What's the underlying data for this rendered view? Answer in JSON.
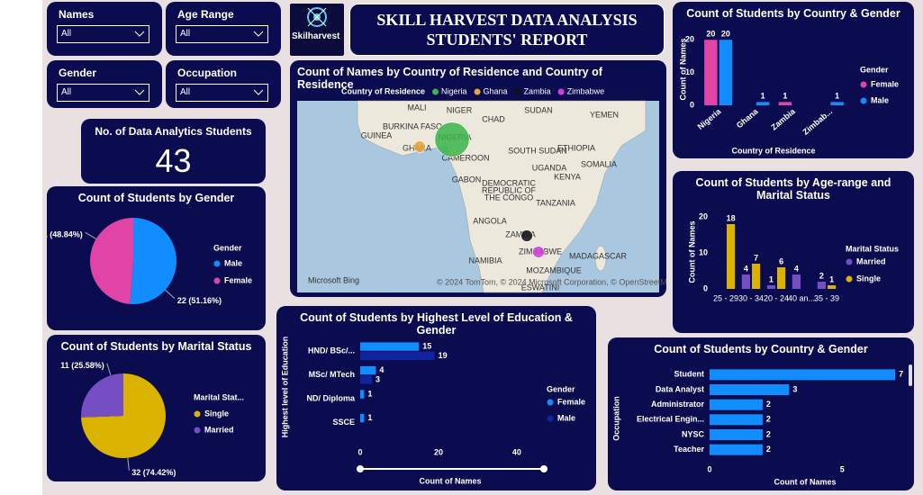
{
  "header": {
    "logo_text": "Skilharvest",
    "title_lines": [
      "SKILL HARVEST DATA ANALYSIS",
      "STUDENTS' REPORT"
    ]
  },
  "slicers": [
    {
      "label": "Names",
      "value": "All"
    },
    {
      "label": "Age Range",
      "value": "All"
    },
    {
      "label": "Gender",
      "value": "All"
    },
    {
      "label": "Occupation",
      "value": "All"
    }
  ],
  "kpi": {
    "label": "No. of Data Analytics Students",
    "value": 43
  },
  "chart_data": [
    {
      "type": "column",
      "title": "Count of Students by Country & Gender",
      "categories": [
        "Nigeria",
        "Ghana",
        "Zambia",
        "Zimbab..."
      ],
      "series": [
        {
          "name": "Female",
          "color": "#e044a7",
          "values": [
            20,
            null,
            1,
            null
          ]
        },
        {
          "name": "Male",
          "color": "#118dff",
          "values": [
            20,
            1,
            null,
            1
          ]
        }
      ],
      "ylim": [
        0,
        22
      ],
      "yticks": [
        0,
        10,
        20
      ],
      "y_label": "Count of Names",
      "x_label": "Country of Residence",
      "legend_title": "Gender",
      "legend": "right",
      "data_labels": true
    },
    {
      "type": "pie",
      "title": "Count of Students by Gender",
      "categories": [
        "Male",
        "Female"
      ],
      "values": [
        22,
        21
      ],
      "value_labels": [
        "22 (51.16%)",
        "21 (48.84%)"
      ],
      "colors": [
        "#118dff",
        "#e044a7"
      ],
      "legend_title": "Gender",
      "legend": "right"
    },
    {
      "type": "pie",
      "title": "Count of Students by Marital Status",
      "categories": [
        "Single",
        "Married"
      ],
      "values": [
        32,
        11
      ],
      "value_labels": [
        "32 (74.42%)",
        "11 (25.58%)"
      ],
      "colors": [
        "#d9b300",
        "#744ec2"
      ],
      "legend_title": "Marital Stat...",
      "legend": "right"
    },
    {
      "type": "map",
      "title": "Count of Names by Country of Residence and Country of Residence",
      "legend_title": "Country of Residence",
      "legend": "top",
      "categories": [
        "Nigeria",
        "Ghana",
        "Zambia",
        "Zimbabwe"
      ],
      "values": [
        40,
        1,
        1,
        1
      ],
      "colors": [
        "#3bb44a",
        "#e8a23a",
        "#111111",
        "#d43cd9"
      ],
      "map_labels": [
        "MALI",
        "NIGER",
        "CHAD",
        "SUDAN",
        "YEMEN",
        "BURKINA FASO",
        "GUINEA",
        "NIGERIA",
        "GHANA",
        "SOUTH SUDAN",
        "ETHIOPIA",
        "CAMEROON",
        "UGANDA",
        "SOMALIA",
        "GABON",
        "KENYA",
        "DEMOCRATIC",
        "REPUBLIC OF",
        "THE CONGO",
        "TANZANIA",
        "ANGOLA",
        "ZAMBIA",
        "ZIMBABWE",
        "NAMIBIA",
        "MADAGASCAR",
        "MOZAMBIQUE",
        "ESWATINI"
      ],
      "attribution": "© 2024 TomTom, © 2024 Microsoft Corporation, © OpenStreetMap  Terms",
      "provider": "Microsoft Bing"
    },
    {
      "type": "column",
      "title": "Count of Students by Age-range and Marital Status",
      "categories": [
        "25 - 29",
        "30 - 34",
        "20 - 24",
        "40 an...",
        "35 - 39"
      ],
      "series": [
        {
          "name": "Married",
          "color": "#744ec2",
          "values": [
            null,
            4,
            1,
            4,
            2
          ]
        },
        {
          "name": "Single",
          "color": "#d9b300",
          "values": [
            18,
            7,
            6,
            null,
            1
          ]
        }
      ],
      "ylim": [
        0,
        22
      ],
      "yticks": [
        0,
        10,
        20
      ],
      "y_label": "Count of Names",
      "legend_title": "Marital Status",
      "legend": "right",
      "data_labels": true
    },
    {
      "type": "hbar",
      "title": "Count of Students by Highest Level of Education & Gender",
      "categories": [
        "HND/ BSc/...",
        "MSc/ MTech",
        "ND/ Diploma",
        "SSCE"
      ],
      "series": [
        {
          "name": "Female",
          "color": "#118dff",
          "values": [
            15,
            4,
            1,
            1
          ]
        },
        {
          "name": "Male",
          "color": "#12239e",
          "values": [
            19,
            3,
            null,
            null
          ]
        }
      ],
      "xlim": [
        0,
        46
      ],
      "xticks": [
        0,
        20,
        40
      ],
      "y_label": "Highest level of Education",
      "x_label": "Count of Names",
      "legend_title": "Gender",
      "legend": "right",
      "data_labels": true
    },
    {
      "type": "hbar",
      "title": "Count of Students by Country & Gender",
      "categories": [
        "Student",
        "Data Analyst",
        "Administrator",
        "Electrical Engin...",
        "NYSC",
        "Teacher"
      ],
      "series": [
        {
          "color": "#118dff",
          "values": [
            7,
            3,
            2,
            2,
            2,
            2
          ]
        }
      ],
      "xlim": [
        0,
        7.2
      ],
      "xticks": [
        0,
        5
      ],
      "y_label": "Occupation",
      "x_label": "Count of Names",
      "data_labels": true
    }
  ]
}
